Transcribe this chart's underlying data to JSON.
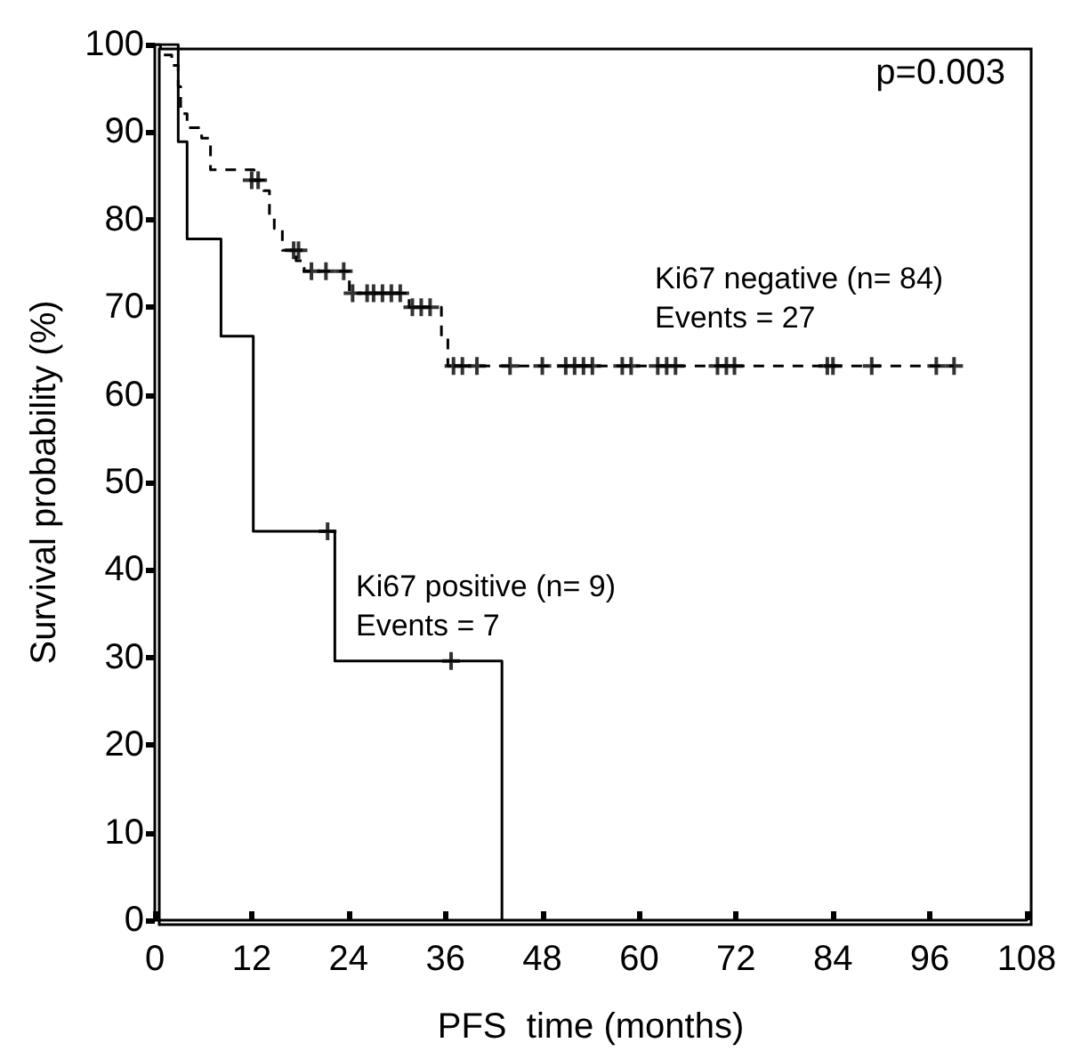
{
  "chart_data": {
    "type": "step",
    "xlabel": "PFS  time (months)",
    "ylabel": "Survival probability (%)",
    "xlim": [
      0,
      108
    ],
    "xticks": [
      0,
      12,
      24,
      36,
      48,
      60,
      72,
      84,
      96,
      108
    ],
    "ylim": [
      0,
      100
    ],
    "yticks": [
      0,
      10,
      20,
      30,
      40,
      50,
      60,
      70,
      80,
      90,
      100
    ],
    "grid": false,
    "series": [
      {
        "color": "#000000",
        "line_style": "solid",
        "x": [
          0,
          2.9,
          4.0,
          8.2,
          12.2,
          22.3,
          43.0
        ],
        "values": [
          100,
          88.9,
          77.8,
          66.7,
          44.4,
          29.6,
          0
        ]
      },
      {
        "color": "#000000",
        "line_style": "dashed",
        "x": [
          0,
          0.7,
          2.1,
          2.9,
          3.2,
          4.0,
          5.8,
          6.9,
          12.3,
          13.5,
          14.2,
          14.8,
          15.8,
          17.5,
          18.5,
          24.1,
          31.5,
          35.5,
          36.3,
          99.0
        ],
        "values": [
          100,
          98.8,
          97.6,
          95.2,
          92.1,
          90.5,
          89.3,
          85.7,
          84.5,
          83.3,
          80.2,
          79.0,
          76.5,
          75.3,
          74.1,
          71.6,
          70.0,
          66.5,
          63.3,
          63.3
        ]
      },
      {
        "type": "scatter",
        "color": "#000000",
        "marker": "cross",
        "x": [
          21.4,
          36.7
        ],
        "values": [
          44.4,
          29.6
        ]
      },
      {
        "type": "scatter",
        "color": "#000000",
        "marker": "cross",
        "x": [
          12.0,
          12.8,
          17.2,
          17.8,
          19.4,
          21.2,
          23.4,
          24.5,
          26.3,
          27.1,
          28.2,
          29.3,
          30.4,
          31.9,
          33.0,
          34.1,
          37.0,
          38.1,
          39.9,
          44.0,
          48.0,
          50.9,
          52.0,
          53.1,
          54.2,
          57.9,
          59.0,
          62.3,
          63.4,
          64.5,
          69.7,
          70.8,
          71.8,
          83.3,
          84.0,
          88.8,
          96.8,
          99.0
        ],
        "values": [
          84.5,
          84.5,
          76.5,
          76.5,
          74.1,
          74.1,
          74.1,
          71.6,
          71.6,
          71.6,
          71.6,
          71.6,
          71.6,
          70.0,
          70.0,
          70.0,
          63.3,
          63.3,
          63.3,
          63.3,
          63.3,
          63.3,
          63.3,
          63.3,
          63.3,
          63.3,
          63.3,
          63.3,
          63.3,
          63.3,
          63.3,
          63.3,
          63.3,
          63.3,
          63.3,
          63.3,
          63.3,
          63.3
        ]
      }
    ],
    "annotations": [
      "p=0.003",
      "Ki67 negative (n= 84)",
      "Events = 27",
      "Ki67 positive (n= 9)",
      "Events = 7"
    ]
  }
}
